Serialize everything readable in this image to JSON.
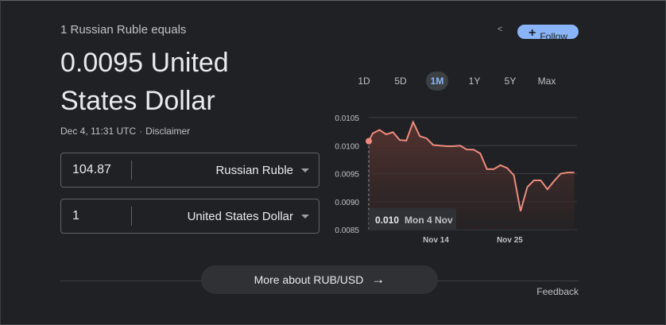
{
  "header": {
    "subtitle": "1 Russian Ruble equals",
    "value_line": "0.0095 United States Dollar",
    "timestamp": "Dec 4, 11:31 UTC",
    "separator": "·",
    "disclaimer": "Disclaimer"
  },
  "actions": {
    "share_icon": "share-icon",
    "share_glyph": "<",
    "follow_plus": "+",
    "follow_label": "Follow"
  },
  "converter": {
    "from": {
      "amount": "104.87",
      "currency": "Russian Ruble"
    },
    "to": {
      "amount": "1",
      "currency": "United States Dollar"
    }
  },
  "ranges": [
    "1D",
    "5D",
    "1M",
    "1Y",
    "5Y",
    "Max"
  ],
  "active_range": "1M",
  "tooltip": {
    "value": "0.010",
    "date": "Mon 4 Nov"
  },
  "more_button": {
    "label": "More about RUB/USD",
    "arrow": "→"
  },
  "feedback": "Feedback",
  "colors": {
    "background": "#202124",
    "accent": "#8ab4f8",
    "line": "#ee8b7d",
    "fill_top": "#5a3531",
    "grid": "#3c4043"
  },
  "chart_data": {
    "type": "area",
    "y_ticks": [
      0.0105,
      0.01,
      0.0095,
      0.009,
      0.0085
    ],
    "y_tick_labels": [
      "0.0105",
      "0.0100",
      "0.0095",
      "0.0090",
      "0.0085"
    ],
    "ylim": [
      0.0085,
      0.0105
    ],
    "x_ticks": [
      {
        "label": "Nov 14",
        "day": 14
      },
      {
        "label": "Nov 25",
        "day": 25
      }
    ],
    "xlim": [
      4,
      35
    ],
    "grid": true,
    "values": [
      [
        4.0,
        0.01008
      ],
      [
        4.6,
        0.01022
      ],
      [
        5.6,
        0.01028
      ],
      [
        6.6,
        0.0102
      ],
      [
        7.6,
        0.01024
      ],
      [
        8.6,
        0.0101
      ],
      [
        9.6,
        0.01009
      ],
      [
        10.6,
        0.01042
      ],
      [
        11.6,
        0.01017
      ],
      [
        12.6,
        0.01013
      ],
      [
        13.6,
        0.01001
      ],
      [
        14.6,
        0.01
      ],
      [
        15.6,
        0.00999
      ],
      [
        16.6,
        0.00999
      ],
      [
        17.6,
        0.01
      ],
      [
        18.6,
        0.00993
      ],
      [
        19.6,
        0.00993
      ],
      [
        20.6,
        0.00986
      ],
      [
        21.6,
        0.00958
      ],
      [
        22.6,
        0.00958
      ],
      [
        23.6,
        0.00965
      ],
      [
        24.6,
        0.0096
      ],
      [
        25.6,
        0.00947
      ],
      [
        26.6,
        0.00883
      ],
      [
        27.6,
        0.00926
      ],
      [
        28.6,
        0.00938
      ],
      [
        29.6,
        0.00938
      ],
      [
        30.6,
        0.00922
      ],
      [
        31.6,
        0.00937
      ],
      [
        32.6,
        0.0095
      ],
      [
        33.6,
        0.00952
      ],
      [
        34.6,
        0.00952
      ]
    ]
  }
}
